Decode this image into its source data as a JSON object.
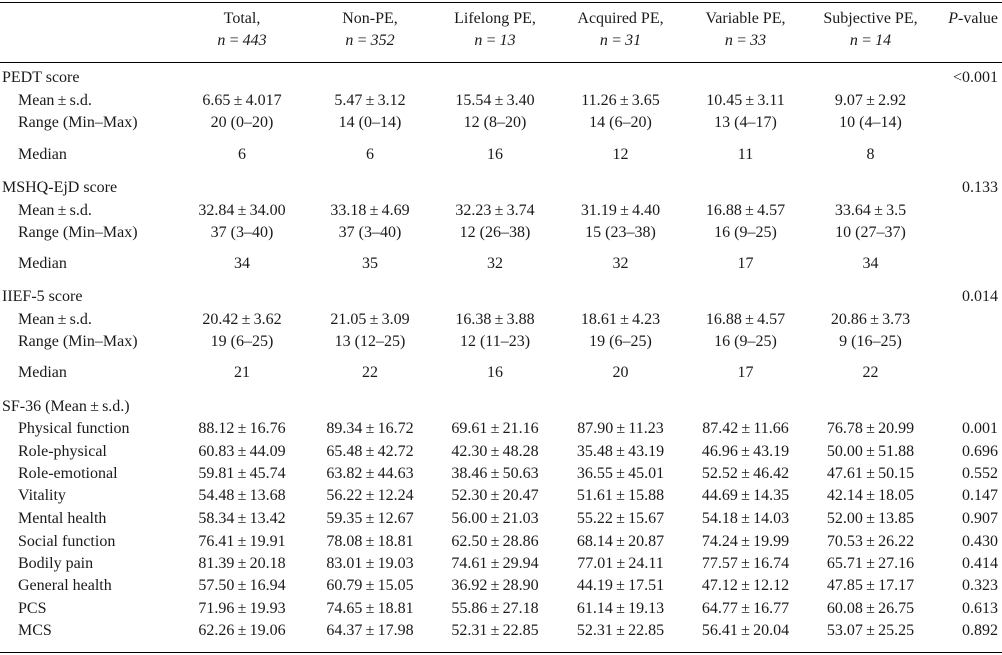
{
  "header": {
    "columns": [
      {
        "name": "Total,",
        "n": "n = 443"
      },
      {
        "name": "Non-PE,",
        "n": "n = 352"
      },
      {
        "name": "Lifelong PE,",
        "n": "n = 13"
      },
      {
        "name": "Acquired PE,",
        "n": "n = 31"
      },
      {
        "name": "Variable PE,",
        "n": "n = 33"
      },
      {
        "name": "Subjective PE,",
        "n": "n = 14"
      }
    ],
    "pvalue_p": "P",
    "pvalue_rest": "-value"
  },
  "rows": [
    {
      "label": "PEDT score",
      "sub": false,
      "cells": [
        "",
        "",
        "",
        "",
        "",
        ""
      ],
      "p": "<0.001"
    },
    {
      "label": "Mean ± s.d.",
      "sub": true,
      "cells": [
        "6.65 ± 4.017",
        "5.47 ± 3.12",
        "15.54 ± 3.40",
        "11.26 ± 3.65",
        "10.45 ± 3.11",
        "9.07 ± 2.92"
      ],
      "p": ""
    },
    {
      "label": "Range (Min–Max)",
      "sub": true,
      "cells": [
        "20 (0–20)",
        "14 (0–14)",
        "12 (8–20)",
        "14 (6–20)",
        "13 (4–17)",
        "10 (4–14)"
      ],
      "p": ""
    },
    {
      "label": "Median",
      "sub": true,
      "cells": [
        "6",
        "6",
        "16",
        "12",
        "11",
        "8"
      ],
      "p": ""
    },
    {
      "label": "MSHQ-EjD score",
      "sub": false,
      "cells": [
        "",
        "",
        "",
        "",
        "",
        ""
      ],
      "p": "0.133"
    },
    {
      "label": "Mean ± s.d.",
      "sub": true,
      "cells": [
        "32.84 ± 34.00",
        "33.18 ± 4.69",
        "32.23 ± 3.74",
        "31.19 ± 4.40",
        "16.88 ± 4.57",
        "33.64 ± 3.5"
      ],
      "p": ""
    },
    {
      "label": "Range (Min–Max)",
      "sub": true,
      "cells": [
        "37 (3–40)",
        "37 (3–40)",
        "12 (26–38)",
        "15 (23–38)",
        "16 (9–25)",
        "10 (27–37)"
      ],
      "p": ""
    },
    {
      "label": "Median",
      "sub": true,
      "cells": [
        "34",
        "35",
        "32",
        "32",
        "17",
        "34"
      ],
      "p": ""
    },
    {
      "label": "IIEF-5 score",
      "sub": false,
      "cells": [
        "",
        "",
        "",
        "",
        "",
        ""
      ],
      "p": "0.014"
    },
    {
      "label": "Mean ± s.d.",
      "sub": true,
      "cells": [
        "20.42 ± 3.62",
        "21.05 ± 3.09",
        "16.38 ± 3.88",
        "18.61 ± 4.23",
        "16.88 ± 4.57",
        "20.86 ± 3.73"
      ],
      "p": ""
    },
    {
      "label": "Range (Min–Max)",
      "sub": true,
      "cells": [
        "19 (6–25)",
        "13 (12–25)",
        "12 (11–23)",
        "19 (6–25)",
        "16 (9–25)",
        "9 (16–25)"
      ],
      "p": ""
    },
    {
      "label": "Median",
      "sub": true,
      "cells": [
        "21",
        "22",
        "16",
        "20",
        "17",
        "22"
      ],
      "p": ""
    },
    {
      "label": "SF-36 (Mean ± s.d.)",
      "sub": false,
      "cells": [
        "",
        "",
        "",
        "",
        "",
        ""
      ],
      "p": ""
    },
    {
      "label": "Physical function",
      "sub": true,
      "cells": [
        "88.12 ± 16.76",
        "89.34 ± 16.72",
        "69.61 ± 21.16",
        "87.90 ± 11.23",
        "87.42 ± 11.66",
        "76.78 ± 20.99"
      ],
      "p": "0.001"
    },
    {
      "label": "Role-physical",
      "sub": true,
      "cells": [
        "60.83 ± 44.09",
        "65.48 ± 42.72",
        "42.30 ± 48.28",
        "35.48 ± 43.19",
        "46.96 ± 43.19",
        "50.00 ± 51.88"
      ],
      "p": "0.696"
    },
    {
      "label": "Role-emotional",
      "sub": true,
      "cells": [
        "59.81 ± 45.74",
        "63.82 ± 44.63",
        "38.46 ± 50.63",
        "36.55 ± 45.01",
        "52.52 ± 46.42",
        "47.61 ± 50.15"
      ],
      "p": "0.552"
    },
    {
      "label": "Vitality",
      "sub": true,
      "cells": [
        "54.48 ± 13.68",
        "56.22 ± 12.24",
        "52.30 ± 20.47",
        "51.61 ± 15.88",
        "44.69 ± 14.35",
        "42.14 ± 18.05"
      ],
      "p": "0.147"
    },
    {
      "label": "Mental health",
      "sub": true,
      "cells": [
        "58.34 ± 13.42",
        "59.35 ± 12.67",
        "56.00 ± 21.03",
        "55.22 ± 15.67",
        "54.18 ± 14.03",
        "52.00 ± 13.85"
      ],
      "p": "0.907"
    },
    {
      "label": "Social function",
      "sub": true,
      "cells": [
        "76.41 ± 19.91",
        "78.08 ± 18.81",
        "62.50 ± 28.86",
        "68.14 ± 20.87",
        "74.24 ± 19.99",
        "70.53 ± 26.22"
      ],
      "p": "0.430"
    },
    {
      "label": "Bodily pain",
      "sub": true,
      "cells": [
        "81.39 ± 20.18",
        "83.01 ± 19.03",
        "74.61 ± 29.94",
        "77.01 ± 24.11",
        "77.57 ± 16.74",
        "65.71 ± 27.16"
      ],
      "p": "0.414"
    },
    {
      "label": "General health",
      "sub": true,
      "cells": [
        "57.50 ± 16.94",
        "60.79 ± 15.05",
        "36.92 ± 28.90",
        "44.19 ± 17.51",
        "47.12 ± 12.12",
        "47.85 ± 17.17"
      ],
      "p": "0.323"
    },
    {
      "label": "PCS",
      "sub": true,
      "cells": [
        "71.96 ± 19.93",
        "74.65 ± 18.81",
        "55.86 ± 27.18",
        "61.14 ± 19.13",
        "64.77 ± 16.77",
        "60.08 ± 26.75"
      ],
      "p": "0.613"
    },
    {
      "label": "MCS",
      "sub": true,
      "cells": [
        "62.26 ± 19.06",
        "64.37 ± 17.98",
        "52.31 ± 22.85",
        "52.31 ± 22.85",
        "56.41 ± 20.04",
        "53.07 ± 25.25"
      ],
      "p": "0.892"
    }
  ]
}
